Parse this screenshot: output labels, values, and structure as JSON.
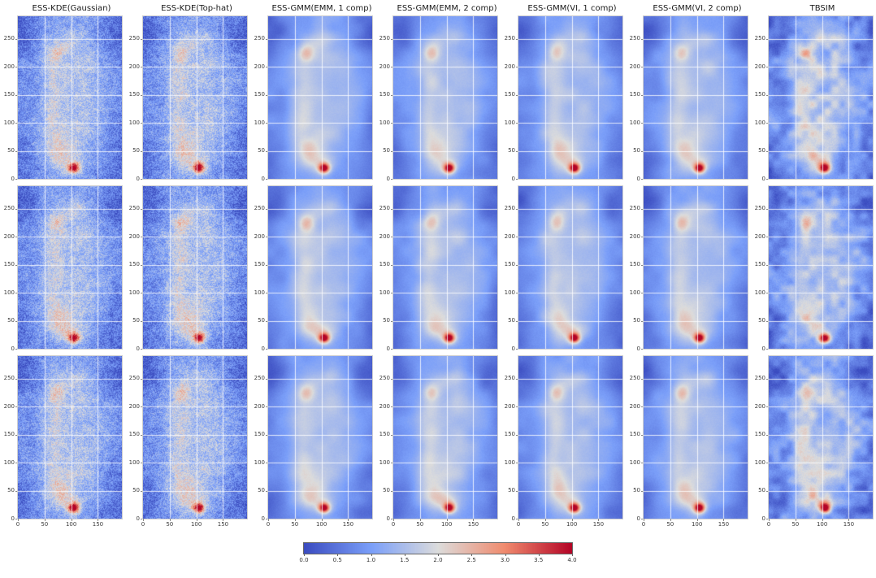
{
  "figure": {
    "description": "Grid of simulated 2D density heatmaps comparing estimation methods",
    "colormap_name": "coolwarm"
  },
  "chart_data": {
    "type": "heatmap",
    "layout": {
      "rows": 3,
      "cols": 7,
      "grid": true,
      "legend_position": "bottom-colorbar"
    },
    "panel_titles": [
      "ESS-KDE(Gaussian)",
      "ESS-KDE(Top-hat)",
      "ESS-GMM(EMM, 1 comp)",
      "ESS-GMM(EMM, 2 comp)",
      "ESS-GMM(VI, 1 comp)",
      "ESS-GMM(VI, 2 comp)",
      "TBSIM"
    ],
    "panel_styles": [
      "kde",
      "kde",
      "gmm",
      "gmm",
      "gmm",
      "gmm",
      "tbsim"
    ],
    "x_ticks": [
      0,
      50,
      100,
      150
    ],
    "x_tick_labels": [
      "0",
      "50",
      "100",
      "150"
    ],
    "y_ticks": [
      0,
      50,
      100,
      150,
      200,
      250
    ],
    "y_tick_labels": [
      "0",
      "50",
      "100",
      "150",
      "200",
      "250"
    ],
    "x_range": [
      0,
      195
    ],
    "y_range": [
      0,
      290
    ],
    "colorbar": {
      "vmin": 0,
      "vmax": 4,
      "orientation": "horizontal",
      "tick_values": [
        0.0,
        0.5,
        1.0,
        1.5,
        2.0,
        2.5,
        3.0,
        3.5,
        4.0
      ],
      "tick_labels": [
        "0.0",
        "0.5",
        "1.0",
        "1.5",
        "2.0",
        "2.5",
        "3.0",
        "3.5",
        "4.0"
      ]
    },
    "colormap_stops": [
      {
        "t": 0.0,
        "color": "#3b4cc0"
      },
      {
        "t": 0.25,
        "color": "#7b9ff9"
      },
      {
        "t": 0.5,
        "color": "#dcdcdc"
      },
      {
        "t": 0.75,
        "color": "#f08b6e"
      },
      {
        "t": 1.0,
        "color": "#b40426"
      }
    ],
    "background": {
      "level": 1.35,
      "edge_dark_x": 0.55,
      "edge_dark_y": 0.28,
      "power": 2.2
    },
    "hotspots": [
      {
        "x": 105,
        "y": 19,
        "sx": 7,
        "sy": 6,
        "amp": 2.9
      },
      {
        "x": 102,
        "y": 28,
        "sx": 17,
        "sy": 13,
        "amp": 0.7
      },
      {
        "x": 76,
        "y": 46,
        "sx": 16,
        "sy": 18,
        "amp": 0.8
      },
      {
        "x": 64,
        "y": 100,
        "sx": 12,
        "sy": 28,
        "amp": 0.5
      },
      {
        "x": 70,
        "y": 160,
        "sx": 14,
        "sy": 22,
        "amp": 0.45
      },
      {
        "x": 62,
        "y": 195,
        "sx": 16,
        "sy": 14,
        "amp": 0.35
      },
      {
        "x": 71,
        "y": 224,
        "sx": 11,
        "sy": 11,
        "amp": 1.0
      },
      {
        "x": 88,
        "y": 243,
        "sx": 18,
        "sy": 12,
        "amp": 0.4
      },
      {
        "x": 118,
        "y": 252,
        "sx": 13,
        "sy": 9,
        "amp": 0.35
      },
      {
        "x": 117,
        "y": 205,
        "sx": 22,
        "sy": 18,
        "amp": 0.3
      },
      {
        "x": 125,
        "y": 115,
        "sx": 30,
        "sy": 40,
        "amp": 0.2
      },
      {
        "x": 95,
        "y": 75,
        "sx": 24,
        "sy": 20,
        "amp": 0.3
      },
      {
        "x": 12,
        "y": 258,
        "sx": 22,
        "sy": 24,
        "amp": -0.5
      },
      {
        "x": 182,
        "y": 252,
        "sx": 24,
        "sy": 26,
        "amp": -0.45
      },
      {
        "x": 185,
        "y": 70,
        "sx": 26,
        "sy": 38,
        "amp": -0.3
      },
      {
        "x": 12,
        "y": 38,
        "sx": 20,
        "sy": 26,
        "amp": -0.25
      },
      {
        "x": 155,
        "y": 12,
        "sx": 30,
        "sy": 12,
        "amp": -0.2
      },
      {
        "x": 28,
        "y": 150,
        "sx": 16,
        "sy": 40,
        "amp": -0.2
      }
    ],
    "noise_styles": {
      "kde": {
        "layers": [
          {
            "cell": 6,
            "amp": 0.2
          }
        ],
        "fine_amp": 0.5
      },
      "gmm": {
        "layers": [
          {
            "cell": 16,
            "amp": 0.16
          }
        ],
        "fine_amp": 0.05
      },
      "tbsim": {
        "layers": [
          {
            "cell": 9,
            "amp": 0.42
          },
          {
            "cell": 22,
            "amp": 0.22
          }
        ],
        "fine_amp": 0.12
      }
    }
  }
}
